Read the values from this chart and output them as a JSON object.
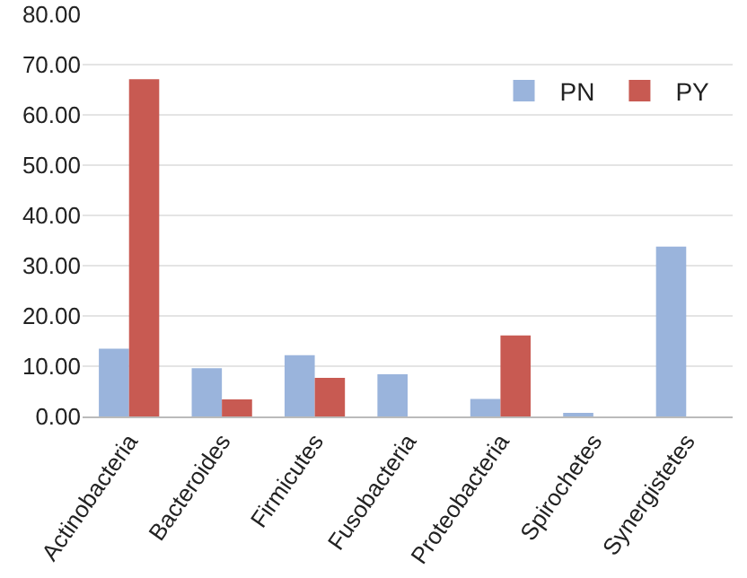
{
  "chart_data": {
    "type": "bar",
    "categories": [
      "Actinobacteria",
      "Bacteroides",
      "Firmicutes",
      "Fusobacteria",
      "Proteobacteria",
      "Spirochetes",
      "Synergistetes"
    ],
    "series": [
      {
        "name": "PN",
        "color": "#9ab4dc",
        "values": [
          13.5,
          9.6,
          12.2,
          8.4,
          3.5,
          0.4,
          33.8
        ]
      },
      {
        "name": "PY",
        "color": "#c85a52",
        "values": [
          67.1,
          3.4,
          7.7,
          0,
          16.1,
          0,
          0
        ]
      }
    ],
    "ylim": [
      0,
      80
    ],
    "yticks": [
      {
        "value": 0,
        "label": "0.00"
      },
      {
        "value": 10,
        "label": "10.00"
      },
      {
        "value": 20,
        "label": "20.00"
      },
      {
        "value": 30,
        "label": "30.00"
      },
      {
        "value": 40,
        "label": "40.00"
      },
      {
        "value": 50,
        "label": "50.00"
      },
      {
        "value": 60,
        "label": "60.00"
      },
      {
        "value": 70,
        "label": "70.00"
      },
      {
        "value": 80,
        "label": "80.00"
      }
    ],
    "grid": "y",
    "legend": "top right"
  }
}
